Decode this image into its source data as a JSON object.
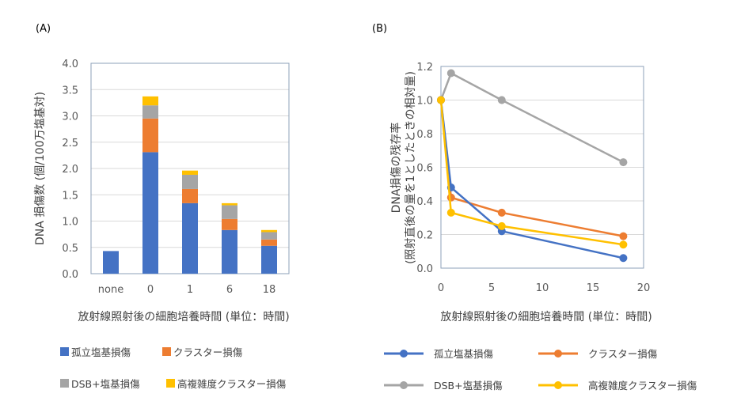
{
  "colors": {
    "isolated": "#4472c4",
    "cluster": "#ed7d31",
    "dsb": "#a5a5a5",
    "complex": "#ffc000",
    "grid": "#d9d9d9",
    "frame": "#8ea0b8"
  },
  "chart_data": [
    {
      "type": "bar",
      "stacked": true,
      "panel_label": "(A)",
      "categories": [
        "none",
        "0",
        "1",
        "6",
        "18"
      ],
      "series": [
        {
          "name": "孤立塩基損傷",
          "values": [
            0.43,
            2.31,
            1.34,
            0.83,
            0.53
          ]
        },
        {
          "name": "クラスター損傷",
          "values": [
            0,
            0.64,
            0.27,
            0.21,
            0.12
          ]
        },
        {
          "name": "DSB+塩基損傷",
          "values": [
            0,
            0.25,
            0.27,
            0.26,
            0.14
          ]
        },
        {
          "name": "高複雑度クラスター損傷",
          "values": [
            0,
            0.17,
            0.08,
            0.04,
            0.04
          ]
        }
      ],
      "xlabel": "放射線照射後の細胞培養時間 (単位：時間)",
      "ylabel": "DNA 損傷数 (個/100万塩基対)",
      "ylim": [
        0,
        4.0
      ],
      "yticks": [
        "0.0",
        "0.5",
        "1.0",
        "1.5",
        "2.0",
        "2.5",
        "3.0",
        "3.5",
        "4.0"
      ],
      "grid": true,
      "legend": "bottom"
    },
    {
      "type": "line",
      "panel_label": "(B)",
      "x": [
        0,
        1,
        6,
        18
      ],
      "series": [
        {
          "name": "孤立塩基損傷",
          "values": [
            1.0,
            0.48,
            0.22,
            0.06
          ]
        },
        {
          "name": "クラスター損傷",
          "values": [
            1.0,
            0.42,
            0.33,
            0.19
          ]
        },
        {
          "name": "DSB+塩基損傷",
          "values": [
            1.0,
            1.16,
            1.0,
            0.63
          ]
        },
        {
          "name": "高複雑度クラスター損傷",
          "values": [
            1.0,
            0.33,
            0.25,
            0.14
          ]
        }
      ],
      "xlabel": "放射線照射後の細胞培養時間 (単位：時間)",
      "ylabel": [
        "DNA損傷の残存率",
        "(照射直後の量を1としたときの相対量)"
      ],
      "xlim": [
        0,
        20
      ],
      "ylim": [
        0,
        1.2
      ],
      "xticks": [
        "0",
        "5",
        "10",
        "15",
        "20"
      ],
      "yticks": [
        "0.0",
        "0.2",
        "0.4",
        "0.6",
        "0.8",
        "1.0",
        "1.2"
      ],
      "grid": true,
      "legend": "bottom"
    }
  ]
}
